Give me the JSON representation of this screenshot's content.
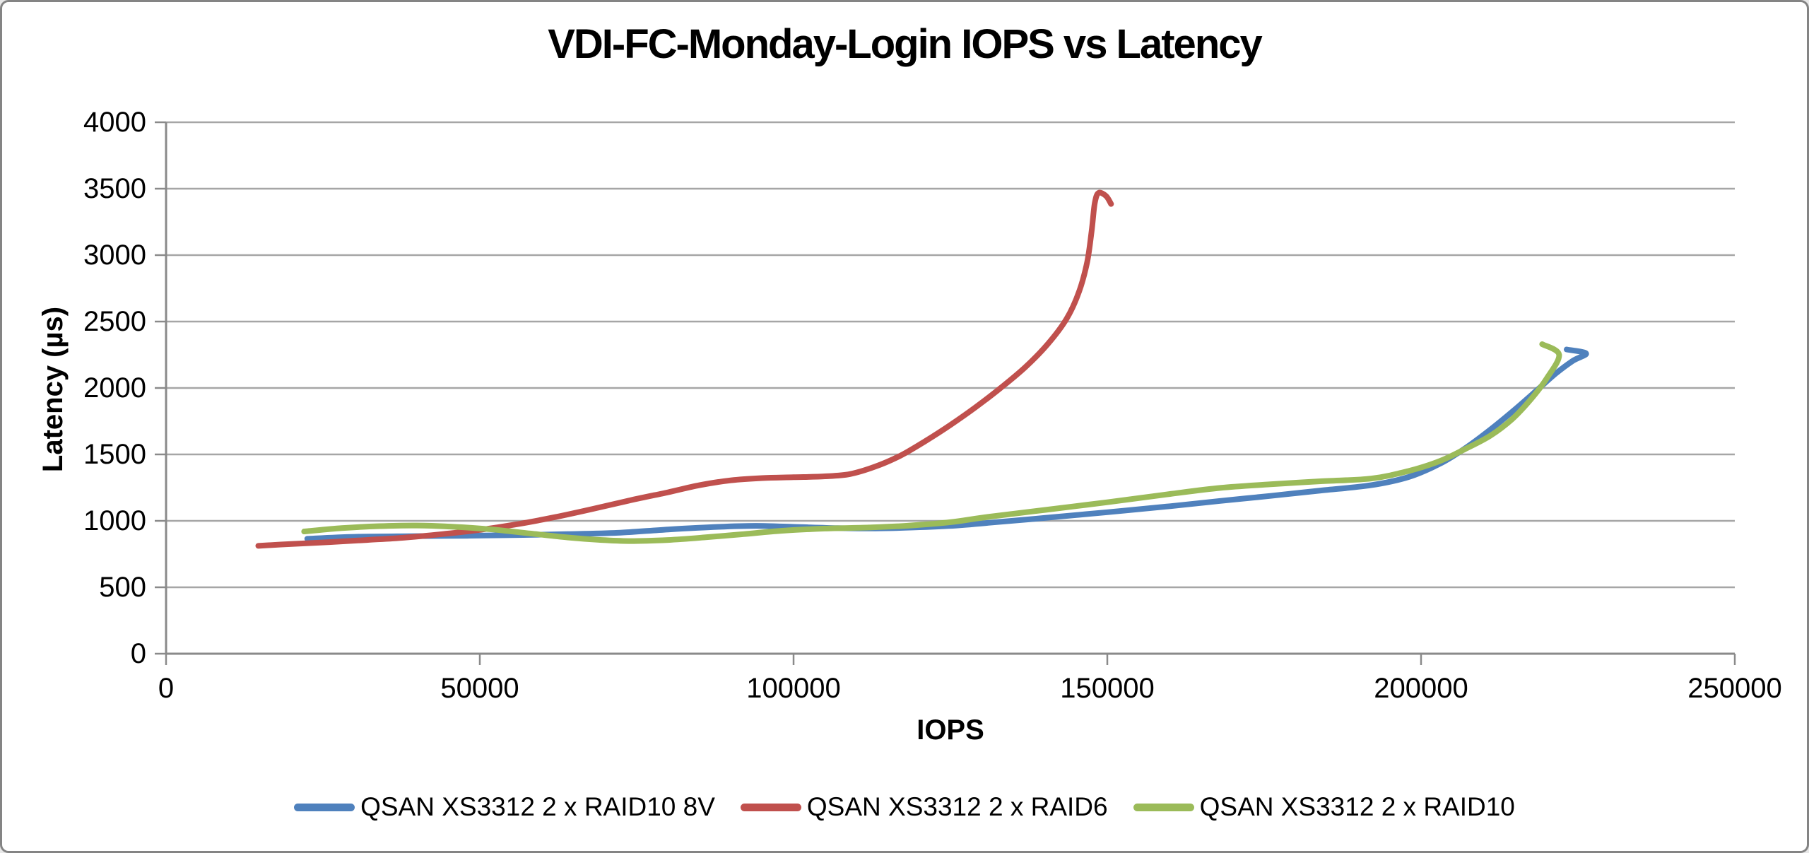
{
  "chart_data": {
    "type": "line",
    "title": "VDI-FC-Monday-Login IOPS vs Latency",
    "xlabel": "IOPS",
    "ylabel": "Latency (µs)",
    "xlim": [
      0,
      250000
    ],
    "ylim": [
      0,
      4000
    ],
    "x_ticks": [
      0,
      50000,
      100000,
      150000,
      200000,
      250000
    ],
    "y_ticks": [
      0,
      500,
      1000,
      1500,
      2000,
      2500,
      3000,
      3500,
      4000
    ],
    "grid": "horizontal-only",
    "legend_position": "bottom",
    "axis_color": "#8a8a8a",
    "grid_color": "#a6a6a6",
    "line_width": 8,
    "series": [
      {
        "name": "QSAN XS3312 2 x RAID10 8V",
        "color": "#4F81BD",
        "points": [
          [
            22500,
            865
          ],
          [
            30000,
            880
          ],
          [
            40000,
            885
          ],
          [
            48000,
            888
          ],
          [
            56000,
            893
          ],
          [
            64000,
            900
          ],
          [
            72000,
            910
          ],
          [
            80000,
            935
          ],
          [
            88000,
            955
          ],
          [
            94000,
            962
          ],
          [
            100000,
            955
          ],
          [
            107000,
            945
          ],
          [
            113000,
            943
          ],
          [
            119000,
            950
          ],
          [
            126000,
            965
          ],
          [
            131000,
            985
          ],
          [
            140000,
            1022
          ],
          [
            150000,
            1065
          ],
          [
            160000,
            1110
          ],
          [
            168000,
            1150
          ],
          [
            176000,
            1188
          ],
          [
            184000,
            1228
          ],
          [
            192000,
            1268
          ],
          [
            198000,
            1330
          ],
          [
            203000,
            1430
          ],
          [
            207000,
            1545
          ],
          [
            211000,
            1685
          ],
          [
            215000,
            1840
          ],
          [
            218500,
            1985
          ],
          [
            221500,
            2110
          ],
          [
            224200,
            2205
          ],
          [
            226300,
            2260
          ],
          [
            223200,
            2290
          ]
        ]
      },
      {
        "name": "QSAN XS3312 2 x RAID6",
        "color": "#C0504D",
        "points": [
          [
            14700,
            812
          ],
          [
            20000,
            826
          ],
          [
            26000,
            840
          ],
          [
            32000,
            856
          ],
          [
            38000,
            874
          ],
          [
            44000,
            900
          ],
          [
            50000,
            932
          ],
          [
            56000,
            975
          ],
          [
            62000,
            1028
          ],
          [
            68000,
            1090
          ],
          [
            74000,
            1155
          ],
          [
            80000,
            1215
          ],
          [
            85000,
            1268
          ],
          [
            90000,
            1305
          ],
          [
            95000,
            1322
          ],
          [
            100000,
            1328
          ],
          [
            105000,
            1335
          ],
          [
            109000,
            1352
          ],
          [
            113000,
            1408
          ],
          [
            117000,
            1490
          ],
          [
            121000,
            1600
          ],
          [
            125000,
            1722
          ],
          [
            129000,
            1855
          ],
          [
            133000,
            2000
          ],
          [
            137000,
            2160
          ],
          [
            140500,
            2330
          ],
          [
            143500,
            2520
          ],
          [
            145500,
            2725
          ],
          [
            146800,
            2950
          ],
          [
            147500,
            3180
          ],
          [
            148000,
            3390
          ],
          [
            148600,
            3468
          ],
          [
            149800,
            3445
          ],
          [
            150600,
            3385
          ]
        ]
      },
      {
        "name": "QSAN XS3312 2 x RAID10",
        "color": "#9BBB59",
        "points": [
          [
            22000,
            920
          ],
          [
            28000,
            945
          ],
          [
            34000,
            960
          ],
          [
            40000,
            965
          ],
          [
            46000,
            955
          ],
          [
            52000,
            935
          ],
          [
            58000,
            905
          ],
          [
            64000,
            875
          ],
          [
            69000,
            857
          ],
          [
            74000,
            848
          ],
          [
            80000,
            856
          ],
          [
            86000,
            876
          ],
          [
            92000,
            900
          ],
          [
            98000,
            925
          ],
          [
            105000,
            942
          ],
          [
            112000,
            950
          ],
          [
            118000,
            963
          ],
          [
            125000,
            990
          ],
          [
            131000,
            1030
          ],
          [
            140000,
            1082
          ],
          [
            150000,
            1140
          ],
          [
            160000,
            1202
          ],
          [
            168000,
            1248
          ],
          [
            176000,
            1275
          ],
          [
            184000,
            1298
          ],
          [
            192000,
            1318
          ],
          [
            198000,
            1375
          ],
          [
            203000,
            1450
          ],
          [
            207000,
            1540
          ],
          [
            211000,
            1640
          ],
          [
            214500,
            1765
          ],
          [
            217500,
            1915
          ],
          [
            220000,
            2070
          ],
          [
            222000,
            2250
          ],
          [
            219300,
            2330
          ]
        ]
      }
    ]
  }
}
